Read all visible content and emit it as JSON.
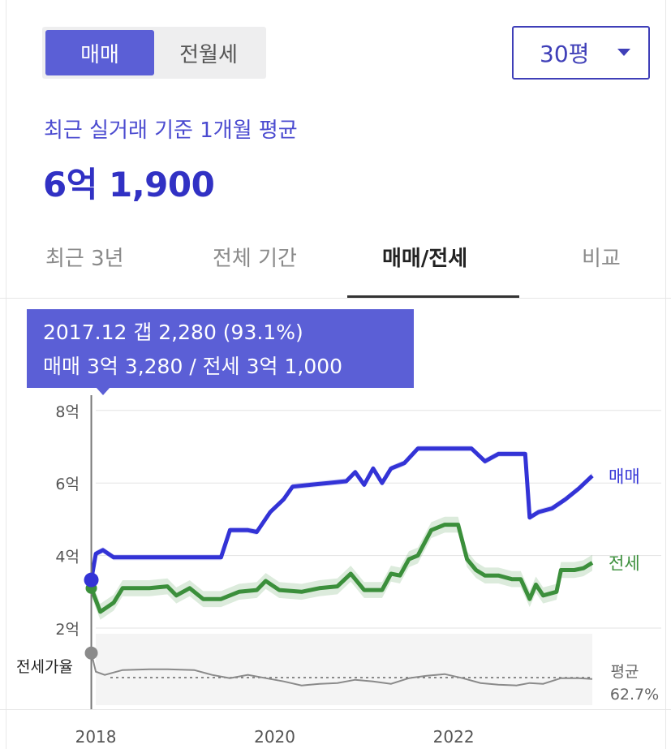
{
  "trade_type_toggle": {
    "selected": "매매",
    "other": "전월세"
  },
  "size_select": {
    "value": "30평"
  },
  "summary": {
    "subtitle": "최근 실거래 기준 1개월 평균",
    "price": "6억 1,900"
  },
  "tabs": [
    {
      "label": "최근 3년",
      "active": false
    },
    {
      "label": "전체 기간",
      "active": false
    },
    {
      "label": "매매/전세",
      "active": true
    },
    {
      "label": "비교",
      "active": false
    }
  ],
  "tooltip": {
    "line1": "2017.12  갭 2,280 (93.1%)",
    "line2": "매매 3억 3,280 / 전세 3억 1,000"
  },
  "colors": {
    "accent": "#5b5fd6",
    "sale": "#3333d6",
    "jeonse": "#3b8f3b",
    "ratio": "#8a8a8a"
  },
  "chart_data": {
    "type": "line",
    "x_unit": "year",
    "xlim": [
      2017.8,
      2023.55
    ],
    "x_ticks": [
      "2018",
      "2020",
      "2022"
    ],
    "y_unit": "억",
    "ylim": [
      1,
      8
    ],
    "y_ticks": [
      "2억",
      "4억",
      "6억",
      "8억"
    ],
    "ratio_label": "전세가율",
    "ratio_avg_label": "평균",
    "ratio_avg_value": "62.7%",
    "highlight": {
      "x": 2017.95,
      "sale": 3.328,
      "jeonse": 3.1
    },
    "series": [
      {
        "name": "매매",
        "points": [
          [
            2017.95,
            3.33
          ],
          [
            2018.0,
            4.05
          ],
          [
            2018.08,
            4.15
          ],
          [
            2018.2,
            3.95
          ],
          [
            2018.5,
            3.95
          ],
          [
            2019.0,
            3.95
          ],
          [
            2019.4,
            3.95
          ],
          [
            2019.5,
            4.7
          ],
          [
            2019.7,
            4.7
          ],
          [
            2019.8,
            4.65
          ],
          [
            2019.95,
            5.2
          ],
          [
            2020.1,
            5.55
          ],
          [
            2020.2,
            5.9
          ],
          [
            2020.4,
            5.95
          ],
          [
            2020.6,
            6.0
          ],
          [
            2020.8,
            6.05
          ],
          [
            2020.9,
            6.3
          ],
          [
            2021.0,
            5.95
          ],
          [
            2021.1,
            6.4
          ],
          [
            2021.2,
            6.0
          ],
          [
            2021.3,
            6.4
          ],
          [
            2021.45,
            6.55
          ],
          [
            2021.6,
            6.95
          ],
          [
            2022.0,
            6.95
          ],
          [
            2022.2,
            6.95
          ],
          [
            2022.35,
            6.6
          ],
          [
            2022.5,
            6.8
          ],
          [
            2022.8,
            6.8
          ],
          [
            2022.85,
            5.05
          ],
          [
            2022.95,
            5.2
          ],
          [
            2023.1,
            5.3
          ],
          [
            2023.25,
            5.55
          ],
          [
            2023.4,
            5.85
          ],
          [
            2023.55,
            6.2
          ]
        ]
      },
      {
        "name": "전세",
        "points": [
          [
            2017.95,
            3.1
          ],
          [
            2018.05,
            2.45
          ],
          [
            2018.2,
            2.7
          ],
          [
            2018.3,
            3.1
          ],
          [
            2018.6,
            3.1
          ],
          [
            2018.8,
            3.15
          ],
          [
            2018.9,
            2.9
          ],
          [
            2019.05,
            3.1
          ],
          [
            2019.2,
            2.8
          ],
          [
            2019.4,
            2.8
          ],
          [
            2019.6,
            3.0
          ],
          [
            2019.8,
            3.05
          ],
          [
            2019.9,
            3.3
          ],
          [
            2020.05,
            3.05
          ],
          [
            2020.3,
            3.0
          ],
          [
            2020.5,
            3.1
          ],
          [
            2020.7,
            3.15
          ],
          [
            2020.85,
            3.5
          ],
          [
            2021.0,
            3.05
          ],
          [
            2021.2,
            3.05
          ],
          [
            2021.3,
            3.5
          ],
          [
            2021.4,
            3.45
          ],
          [
            2021.5,
            3.9
          ],
          [
            2021.6,
            4.0
          ],
          [
            2021.75,
            4.7
          ],
          [
            2021.9,
            4.85
          ],
          [
            2022.05,
            4.85
          ],
          [
            2022.15,
            3.9
          ],
          [
            2022.25,
            3.6
          ],
          [
            2022.35,
            3.45
          ],
          [
            2022.5,
            3.45
          ],
          [
            2022.65,
            3.35
          ],
          [
            2022.75,
            3.35
          ],
          [
            2022.85,
            2.8
          ],
          [
            2022.92,
            3.2
          ],
          [
            2023.0,
            2.9
          ],
          [
            2023.15,
            3.0
          ],
          [
            2023.2,
            3.6
          ],
          [
            2023.35,
            3.6
          ],
          [
            2023.45,
            3.65
          ],
          [
            2023.55,
            3.8
          ]
        ]
      },
      {
        "name": "전세가율",
        "unit": "%",
        "points": [
          [
            2017.95,
            93
          ],
          [
            2018.0,
            70
          ],
          [
            2018.1,
            66
          ],
          [
            2018.3,
            72
          ],
          [
            2018.6,
            73
          ],
          [
            2018.8,
            73
          ],
          [
            2019.1,
            72
          ],
          [
            2019.3,
            66
          ],
          [
            2019.5,
            62
          ],
          [
            2019.7,
            66
          ],
          [
            2019.9,
            62
          ],
          [
            2020.1,
            58
          ],
          [
            2020.3,
            53
          ],
          [
            2020.5,
            55
          ],
          [
            2020.7,
            56
          ],
          [
            2020.9,
            60
          ],
          [
            2021.1,
            58
          ],
          [
            2021.3,
            55
          ],
          [
            2021.5,
            62
          ],
          [
            2021.7,
            65
          ],
          [
            2021.9,
            67
          ],
          [
            2022.1,
            62
          ],
          [
            2022.3,
            56
          ],
          [
            2022.5,
            54
          ],
          [
            2022.7,
            53
          ],
          [
            2022.85,
            56
          ],
          [
            2023.0,
            55
          ],
          [
            2023.2,
            62
          ],
          [
            2023.4,
            62
          ],
          [
            2023.55,
            61
          ]
        ]
      }
    ]
  }
}
